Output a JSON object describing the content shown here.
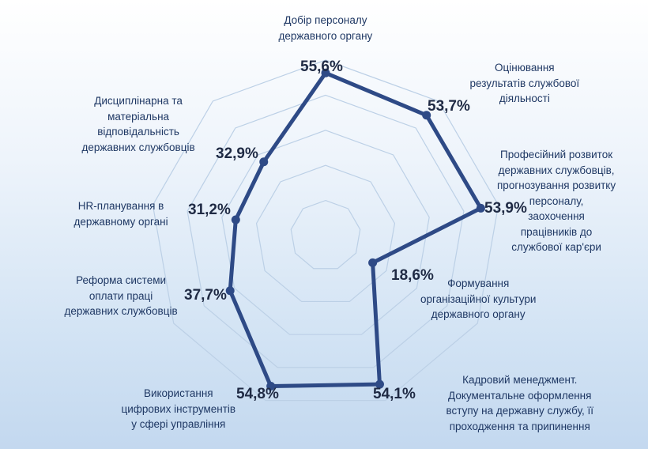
{
  "chart_data": {
    "type": "radar",
    "categories": [
      "Добір персоналу\nдержавного органу",
      "Оцінювання\nрезультатів службової\nдіяльності",
      "Професійний розвиток\nдержавних службовців,\nпрогнозування розвитку\nперсоналу,\nзаохочення\nпрацівників до\nслужбової кар'єри",
      "Формування\nорганізаційної культури\nдержавного органу",
      "Кадровий менеджмент.\nДокументальне оформлення\nвступу на державну службу, її\nпроходження та припинення",
      "Використання\nцифрових інструментів\nу сфері управління",
      "Реформа системи\nоплати праці\nдержавних службовців",
      "HR-планування в\nдержавному органі",
      "Дисциплінарна та\nматеріальна\nвідповідальність\nдержавних службовців"
    ],
    "values": [
      55.6,
      53.7,
      53.9,
      18.6,
      54.1,
      54.8,
      37.7,
      31.2,
      32.9
    ],
    "value_labels": [
      "55,6%",
      "53,7%",
      "53,9%",
      "18,6%",
      "54,1%",
      "54,8%",
      "37,7%",
      "31,2%",
      "32,9%"
    ],
    "rlim": [
      0,
      60
    ],
    "grid": true,
    "colors": {
      "series": "#2e4a86",
      "grid": "#bcd0e6"
    }
  }
}
